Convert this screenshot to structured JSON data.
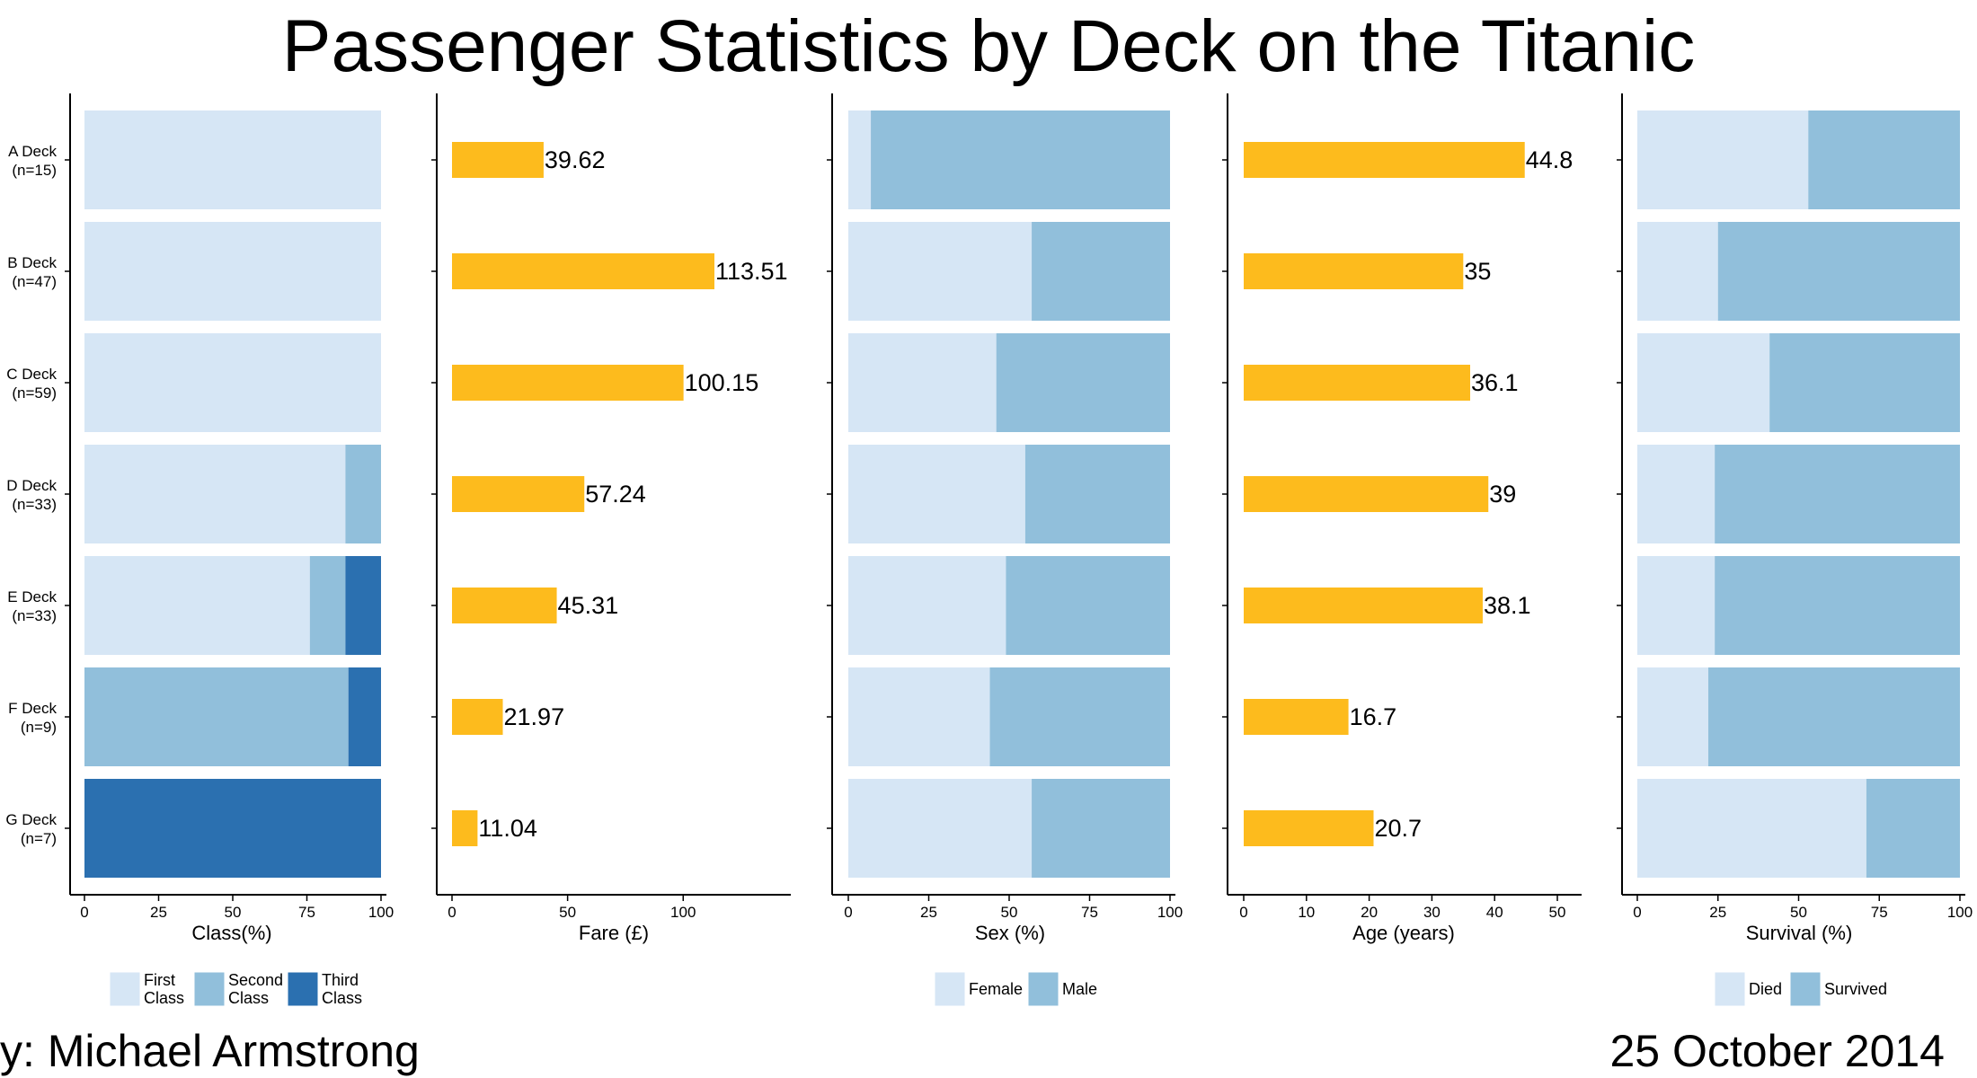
{
  "title": "Passenger Statistics by Deck on the Titanic",
  "footer": {
    "author": "y: Michael Armstrong",
    "date": "25 October 2014"
  },
  "colors": {
    "light": "#d6e6f5",
    "medium": "#91bfdb",
    "dark": "#2b70b0",
    "bar": "#fdbb1d",
    "axis": "#000000"
  },
  "chart_data": {
    "type": "bar",
    "categories": [
      {
        "deck": "A Deck",
        "n": "(n=15)"
      },
      {
        "deck": "B Deck",
        "n": "(n=47)"
      },
      {
        "deck": "C Deck",
        "n": "(n=59)"
      },
      {
        "deck": "D Deck",
        "n": "(n=33)"
      },
      {
        "deck": "E Deck",
        "n": "(n=33)"
      },
      {
        "deck": "F Deck",
        "n": "(n=9)"
      },
      {
        "deck": "G Deck",
        "n": "(n=7)"
      }
    ],
    "panels": [
      {
        "id": "class",
        "type": "stacked_bar",
        "xlabel": "Class(%)",
        "xlim": [
          0,
          100
        ],
        "ticks": [
          0,
          25,
          50,
          75,
          100
        ],
        "series": [
          {
            "name": "First\nClass",
            "color": "#d6e6f5",
            "values": [
              100,
              100,
              100,
              88,
              76,
              0,
              0
            ]
          },
          {
            "name": "Second\nClass",
            "color": "#91bfdb",
            "values": [
              0,
              0,
              0,
              12,
              12,
              89,
              0
            ]
          },
          {
            "name": "Third\nClass",
            "color": "#2b70b0",
            "values": [
              0,
              0,
              0,
              0,
              12,
              11,
              100
            ]
          }
        ]
      },
      {
        "id": "fare",
        "type": "bar",
        "xlabel": "Fare (£)",
        "xlim": [
          0,
          145
        ],
        "ticks": [
          0,
          50,
          100
        ],
        "values": [
          39.62,
          113.51,
          100.15,
          57.24,
          45.31,
          21.97,
          11.04
        ],
        "labels": [
          "39.62",
          "113.51",
          "100.15",
          "57.24",
          "45.31",
          "21.97",
          "11.04"
        ]
      },
      {
        "id": "sex",
        "type": "stacked_bar",
        "xlabel": "Sex (%)",
        "xlim": [
          0,
          100
        ],
        "ticks": [
          0,
          25,
          50,
          75,
          100
        ],
        "series": [
          {
            "name": "Female",
            "color": "#d6e6f5",
            "values": [
              7,
              57,
              46,
              55,
              49,
              44,
              57
            ]
          },
          {
            "name": "Male",
            "color": "#91bfdb",
            "values": [
              93,
              43,
              54,
              45,
              51,
              56,
              43
            ]
          }
        ]
      },
      {
        "id": "age",
        "type": "bar",
        "xlabel": "Age (years)",
        "xlim": [
          0,
          51
        ],
        "ticks": [
          0,
          10,
          20,
          30,
          40,
          50
        ],
        "values": [
          44.8,
          35,
          36.1,
          39,
          38.1,
          16.7,
          20.7
        ],
        "labels": [
          "44.8",
          "35",
          "36.1",
          "39",
          "38.1",
          "16.7",
          "20.7"
        ]
      },
      {
        "id": "survival",
        "type": "stacked_bar",
        "xlabel": "Survival (%)",
        "xlim": [
          0,
          100
        ],
        "ticks": [
          0,
          25,
          50,
          75,
          100
        ],
        "series": [
          {
            "name": "Died",
            "color": "#d6e6f5",
            "values": [
              53,
              25,
              41,
              24,
              24,
              22,
              71
            ]
          },
          {
            "name": "Survived",
            "color": "#91bfdb",
            "values": [
              47,
              75,
              59,
              76,
              76,
              78,
              29
            ]
          }
        ]
      }
    ]
  }
}
